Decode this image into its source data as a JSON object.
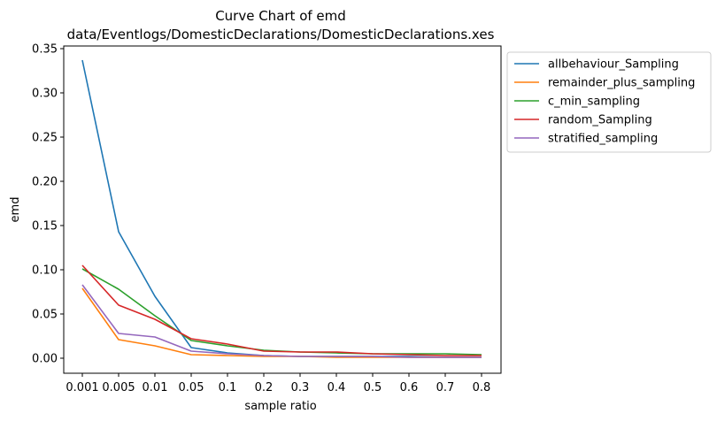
{
  "chart_data": {
    "type": "line",
    "title": "Curve Chart of emd",
    "subtitle": "data/Eventlogs/DomesticDeclarations/DomesticDeclarations.xes",
    "xlabel": "sample ratio",
    "ylabel": "emd",
    "categories": [
      "0.001",
      "0.005",
      "0.01",
      "0.05",
      "0.1",
      "0.2",
      "0.3",
      "0.4",
      "0.5",
      "0.6",
      "0.7",
      "0.8"
    ],
    "ylim": [
      -0.017,
      0.353
    ],
    "yticks": [
      "0.00",
      "0.05",
      "0.10",
      "0.15",
      "0.20",
      "0.25",
      "0.30",
      "0.35"
    ],
    "ytick_values": [
      0,
      0.05,
      0.1,
      0.15,
      0.2,
      0.25,
      0.3,
      0.35
    ],
    "grid": false,
    "legend_position": "outside-top-right",
    "series": [
      {
        "name": "allbehaviour_Sampling",
        "color": "#1f77b4",
        "values": [
          0.337,
          0.143,
          0.07,
          0.012,
          0.006,
          0.003,
          0.002,
          0.002,
          0.002,
          0.002,
          0.001,
          0.001
        ]
      },
      {
        "name": "remainder_plus_sampling",
        "color": "#ff7f0e",
        "values": [
          0.079,
          0.021,
          0.014,
          0.004,
          0.003,
          0.002,
          0.002,
          0.001,
          0.001,
          0.001,
          0.001,
          0.001
        ]
      },
      {
        "name": "c_min_sampling",
        "color": "#2ca02c",
        "values": [
          0.101,
          0.078,
          0.048,
          0.02,
          0.014,
          0.009,
          0.007,
          0.006,
          0.005,
          0.005,
          0.005,
          0.004
        ]
      },
      {
        "name": "random_Sampling",
        "color": "#d62728",
        "values": [
          0.105,
          0.06,
          0.044,
          0.022,
          0.016,
          0.008,
          0.007,
          0.007,
          0.005,
          0.004,
          0.003,
          0.003
        ]
      },
      {
        "name": "stratified_sampling",
        "color": "#9467bd",
        "values": [
          0.083,
          0.028,
          0.024,
          0.008,
          0.005,
          0.003,
          0.002,
          0.002,
          0.002,
          0.001,
          0.001,
          0.001
        ]
      }
    ]
  }
}
